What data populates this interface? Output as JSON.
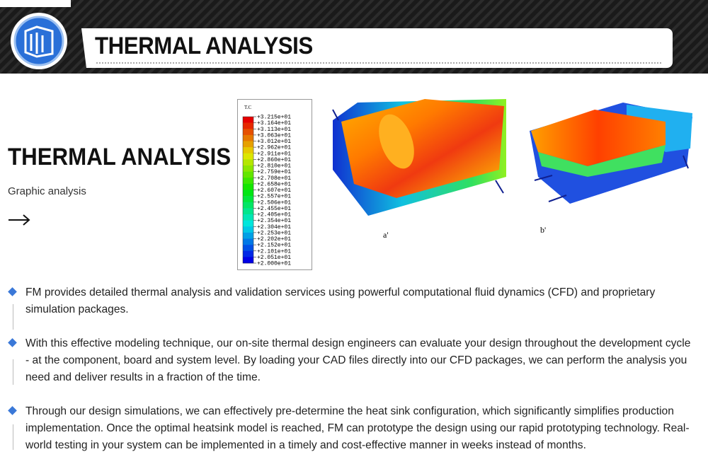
{
  "header": {
    "title": "THERMAL ANALYSIS"
  },
  "intro": {
    "title": "THERMAL ANALYSIS",
    "subtitle": "Graphic analysis"
  },
  "figure": {
    "legend": {
      "title": "T.C",
      "labels": [
        "+3.215e+01",
        "+3.164e+01",
        "+3.113e+01",
        "+3.063e+01",
        "+3.012e+01",
        "+2.962e+01",
        "+2.911e+01",
        "+2.860e+01",
        "+2.810e+01",
        "+2.759e+01",
        "+2.708e+01",
        "+2.658e+01",
        "+2.607e+01",
        "+2.557e+01",
        "+2.506e+01",
        "+2.455e+01",
        "+2.405e+01",
        "+2.354e+01",
        "+2.304e+01",
        "+2.253e+01",
        "+2.202e+01",
        "+2.152e+01",
        "+2.101e+01",
        "+2.051e+01",
        "+2.000e+01"
      ]
    },
    "captions": [
      "a'",
      "b'"
    ]
  },
  "bullets": [
    "FM provides detailed thermal analysis and validation services using powerful computational fluid dynamics (CFD) and proprietary simulation packages.",
    "With this effective modeling technique, our on-site thermal design engineers can evaluate your design throughout the development cycle - at the component, board and system level. By loading your CAD files directly into our CFD packages, we can perform the analysis you need and deliver results in a fraction of the time.",
    "Through our design simulations, we can effectively pre-determine the heat sink configuration, which significantly simplifies production implementation. Once the optimal heatsink model is reached, FM can prototype the design using our rapid prototyping technology. Real-world testing in your system can be implemented in a timely and cost-effective manner in weeks instead of months."
  ]
}
